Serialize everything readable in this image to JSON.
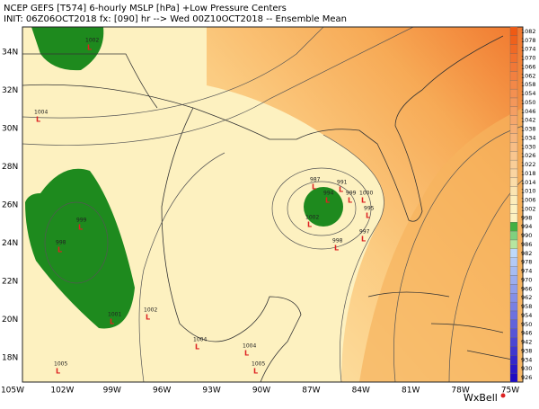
{
  "header": {
    "line1": "NCEP GEFS [T574] 6-hourly MSLP [hPa]   +Low Pressure Centers",
    "line2": "INIT: 06Z06OCT2018 fx: [090] hr --> Wed 00Z10OCT2018 -- Ensemble Mean"
  },
  "map": {
    "lat_labels": [
      "34N",
      "32N",
      "30N",
      "28N",
      "26N",
      "24N",
      "22N",
      "20N",
      "18N"
    ],
    "lon_labels": [
      "105W",
      "102W",
      "99W",
      "96W",
      "93W",
      "90W",
      "87W",
      "84W",
      "81W",
      "78W",
      "75W"
    ],
    "low_symbol": "L",
    "low_centers": [
      "1002",
      "1004",
      "999",
      "998",
      "1001",
      "1002",
      "1005",
      "1004",
      "1004",
      "1005",
      "987",
      "991",
      "994",
      "1000",
      "999",
      "995",
      "997",
      "998",
      "1002"
    ]
  },
  "colorbar": {
    "labels": [
      "1082",
      "1078",
      "1074",
      "1070",
      "1066",
      "1062",
      "1058",
      "1054",
      "1050",
      "1046",
      "1042",
      "1038",
      "1034",
      "1030",
      "1026",
      "1022",
      "1018",
      "1014",
      "1010",
      "1006",
      "1002",
      "998",
      "994",
      "990",
      "986",
      "982",
      "978",
      "974",
      "970",
      "966",
      "962",
      "958",
      "954",
      "950",
      "946",
      "942",
      "938",
      "934",
      "930",
      "926"
    ]
  },
  "logo": "WxBell"
}
